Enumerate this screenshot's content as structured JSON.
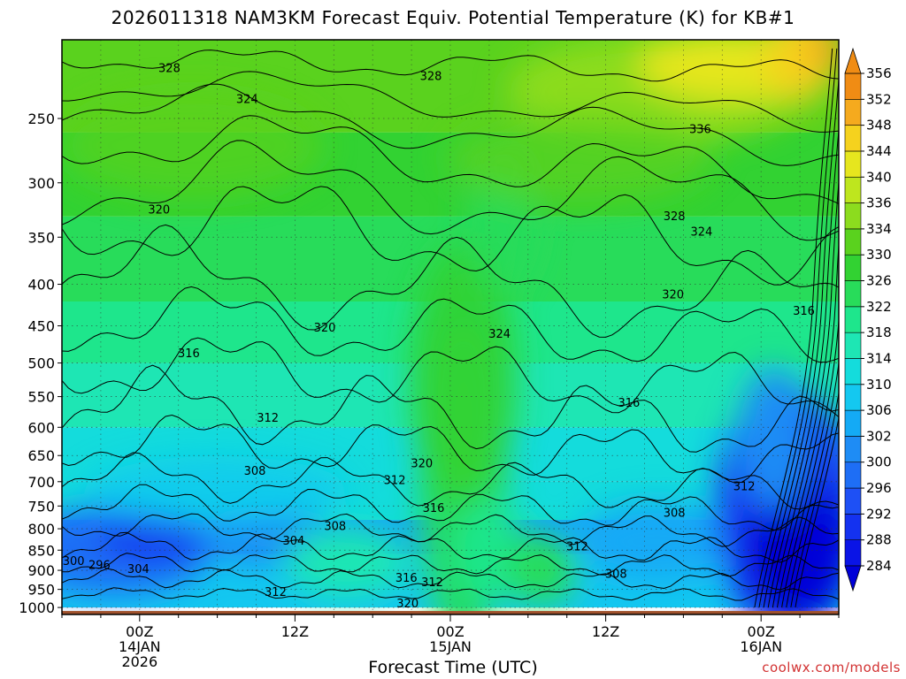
{
  "chart_data": {
    "type": "heatmap",
    "title": "2026011318 NAM3KM Forecast Equiv. Potential Temperature (K) for KB#1",
    "xlabel": "Forecast Time (UTC)",
    "ylabel": "",
    "x_ticks": [
      {
        "hour": 6,
        "lines": [
          "00Z",
          "14JAN",
          "2026"
        ]
      },
      {
        "hour": 18,
        "lines": [
          "12Z"
        ]
      },
      {
        "hour": 30,
        "lines": [
          "00Z",
          "15JAN"
        ]
      },
      {
        "hour": 42,
        "lines": [
          "12Z"
        ]
      },
      {
        "hour": 54,
        "lines": [
          "00Z",
          "16JAN"
        ]
      }
    ],
    "x_range_hours": [
      0,
      60
    ],
    "y_axis": "pressure (hPa), log scale, decreasing upward",
    "y_ticks": [
      250,
      300,
      350,
      400,
      450,
      500,
      550,
      600,
      650,
      700,
      750,
      800,
      850,
      900,
      950,
      1000
    ],
    "y_range": [
      1020,
      200
    ],
    "grid": true,
    "colorbar": {
      "levels": [
        284,
        288,
        292,
        296,
        300,
        302,
        306,
        310,
        314,
        318,
        322,
        326,
        330,
        334,
        336,
        340,
        344,
        348,
        352,
        356
      ],
      "colors": [
        "#0000d8",
        "#0a14e6",
        "#1432f0",
        "#1e50f5",
        "#1e6ef5",
        "#1e8cf5",
        "#14aaf5",
        "#14c8f0",
        "#14dcdc",
        "#1ee6b4",
        "#1ee68c",
        "#28dc5a",
        "#32d232",
        "#5ad21e",
        "#8cdc1e",
        "#bee61e",
        "#e6e61e",
        "#f5d21e",
        "#f5aa1e",
        "#f08c14"
      ]
    },
    "contour_labels": [
      {
        "text": "328",
        "hour": 8.3,
        "p": 217
      },
      {
        "text": "328",
        "hour": 28.5,
        "p": 222
      },
      {
        "text": "324",
        "hour": 14.3,
        "p": 237
      },
      {
        "text": "336",
        "hour": 49.3,
        "p": 258
      },
      {
        "text": "320",
        "hour": 7.5,
        "p": 324
      },
      {
        "text": "328",
        "hour": 47.3,
        "p": 330
      },
      {
        "text": "324",
        "hour": 49.4,
        "p": 345
      },
      {
        "text": "320",
        "hour": 47.2,
        "p": 412
      },
      {
        "text": "316",
        "hour": 57.3,
        "p": 432
      },
      {
        "text": "320",
        "hour": 20.3,
        "p": 453
      },
      {
        "text": "324",
        "hour": 33.8,
        "p": 461
      },
      {
        "text": "316",
        "hour": 9.8,
        "p": 487
      },
      {
        "text": "316",
        "hour": 43.8,
        "p": 560
      },
      {
        "text": "312",
        "hour": 15.9,
        "p": 585
      },
      {
        "text": "320",
        "hour": 27.8,
        "p": 665
      },
      {
        "text": "308",
        "hour": 14.9,
        "p": 680
      },
      {
        "text": "312",
        "hour": 25.7,
        "p": 698
      },
      {
        "text": "312",
        "hour": 52.7,
        "p": 710
      },
      {
        "text": "316",
        "hour": 28.7,
        "p": 755
      },
      {
        "text": "308",
        "hour": 47.3,
        "p": 766
      },
      {
        "text": "308",
        "hour": 21.1,
        "p": 795
      },
      {
        "text": "304",
        "hour": 17.9,
        "p": 828
      },
      {
        "text": "312",
        "hour": 39.8,
        "p": 842
      },
      {
        "text": "300",
        "hour": 0.9,
        "p": 878
      },
      {
        "text": "296",
        "hour": 2.9,
        "p": 888
      },
      {
        "text": "304",
        "hour": 5.9,
        "p": 898
      },
      {
        "text": "308",
        "hour": 42.8,
        "p": 910
      },
      {
        "text": "316",
        "hour": 26.6,
        "p": 920
      },
      {
        "text": "312",
        "hour": 28.6,
        "p": 932
      },
      {
        "text": "312",
        "hour": 16.5,
        "p": 958
      },
      {
        "text": "320",
        "hour": 26.7,
        "p": 990
      }
    ]
  },
  "credit": "coolwx.com/models"
}
